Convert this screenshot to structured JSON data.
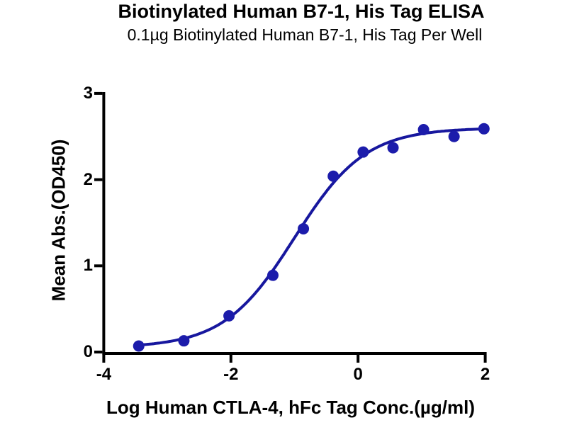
{
  "figure": {
    "title": "Biotinylated Human B7-1, His Tag ELISA",
    "subtitle": "0.1µg Biotinylated Human B7-1, His Tag Per Well"
  },
  "chart_data": {
    "type": "scatter",
    "title": "Biotinylated Human B7-1, His Tag ELISA",
    "subtitle": "0.1µg Biotinylated Human B7-1, His Tag Per Well",
    "xlabel": "Log Human CTLA-4, hFc Tag Conc.(µg/ml)",
    "ylabel": "Mean Abs.(OD450)",
    "xlim": [
      -4,
      2
    ],
    "ylim": [
      0,
      3
    ],
    "x_ticks": [
      -4,
      -2,
      0,
      2
    ],
    "y_ticks": [
      0,
      1,
      2,
      3
    ],
    "grid": false,
    "legend": false,
    "points": [
      {
        "log_conc": -3.45,
        "od450": 0.07
      },
      {
        "log_conc": -2.74,
        "od450": 0.13
      },
      {
        "log_conc": -2.03,
        "od450": 0.42
      },
      {
        "log_conc": -1.34,
        "od450": 0.89
      },
      {
        "log_conc": -0.86,
        "od450": 1.43
      },
      {
        "log_conc": -0.39,
        "od450": 2.04
      },
      {
        "log_conc": 0.08,
        "od450": 2.32
      },
      {
        "log_conc": 0.55,
        "od450": 2.37
      },
      {
        "log_conc": 1.03,
        "od450": 2.58
      },
      {
        "log_conc": 1.51,
        "od450": 2.5
      },
      {
        "log_conc": 1.98,
        "od450": 2.59
      }
    ],
    "fit_curve": {
      "model": "4PL",
      "bottom": 0.05,
      "top": 2.6,
      "log_ec50": -1.0,
      "hill": 0.78,
      "x_start": -3.45,
      "x_end": 1.98
    },
    "colors": {
      "point": "#1c1cab",
      "line": "#17179e",
      "axis": "#000000",
      "text": "#000000",
      "background": "#ffffff"
    }
  }
}
